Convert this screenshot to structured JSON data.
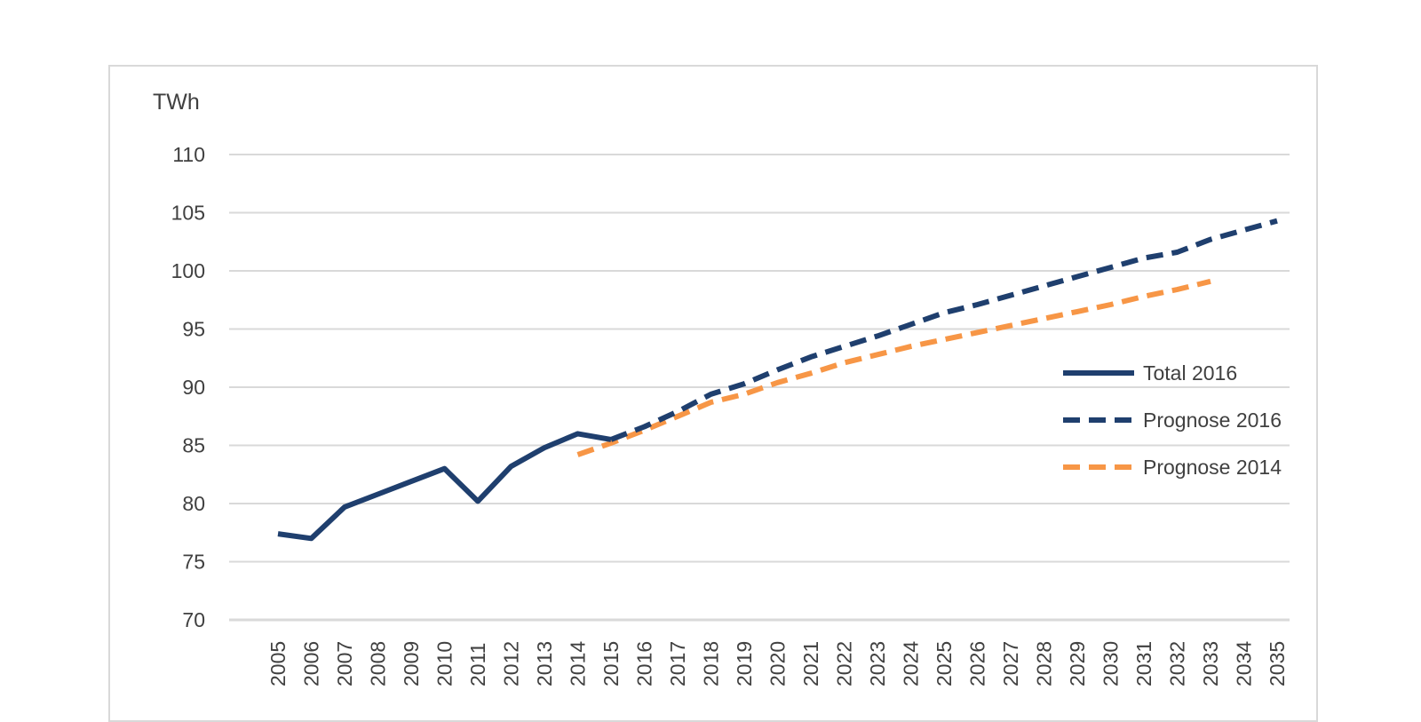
{
  "chart_data": {
    "type": "line",
    "ylabel": "TWh",
    "ylim": [
      70,
      110
    ],
    "y_ticks": [
      70,
      75,
      80,
      85,
      90,
      95,
      100,
      105,
      110
    ],
    "x": [
      2005,
      2006,
      2007,
      2008,
      2009,
      2010,
      2011,
      2012,
      2013,
      2014,
      2015,
      2016,
      2017,
      2018,
      2019,
      2020,
      2021,
      2022,
      2023,
      2024,
      2025,
      2026,
      2027,
      2028,
      2029,
      2030,
      2031,
      2032,
      2033,
      2034,
      2035
    ],
    "grid": true,
    "legend_position": "right",
    "series": [
      {
        "name": "Total 2016",
        "style": "solid",
        "color": "#1f3f6e",
        "points": [
          [
            2005,
            77.4
          ],
          [
            2006,
            77.0
          ],
          [
            2007,
            79.7
          ],
          [
            2008,
            80.8
          ],
          [
            2009,
            81.9
          ],
          [
            2010,
            83.0
          ],
          [
            2011,
            80.2
          ],
          [
            2012,
            83.2
          ],
          [
            2013,
            84.8
          ],
          [
            2014,
            86.0
          ],
          [
            2015,
            85.5
          ]
        ]
      },
      {
        "name": "Prognose 2016",
        "style": "dashed",
        "color": "#1f3f6e",
        "points": [
          [
            2015,
            85.5
          ],
          [
            2016,
            86.6
          ],
          [
            2017,
            87.9
          ],
          [
            2018,
            89.4
          ],
          [
            2019,
            90.3
          ],
          [
            2020,
            91.5
          ],
          [
            2021,
            92.6
          ],
          [
            2022,
            93.5
          ],
          [
            2023,
            94.4
          ],
          [
            2024,
            95.4
          ],
          [
            2025,
            96.4
          ],
          [
            2026,
            97.1
          ],
          [
            2027,
            97.9
          ],
          [
            2028,
            98.7
          ],
          [
            2029,
            99.5
          ],
          [
            2030,
            100.3
          ],
          [
            2031,
            101.1
          ],
          [
            2032,
            101.6
          ],
          [
            2033,
            102.7
          ],
          [
            2034,
            103.5
          ],
          [
            2035,
            104.3
          ]
        ]
      },
      {
        "name": "Prognose 2014",
        "style": "dashed",
        "color": "#f79646",
        "points": [
          [
            2014,
            84.2
          ],
          [
            2015,
            85.2
          ],
          [
            2016,
            86.3
          ],
          [
            2017,
            87.5
          ],
          [
            2018,
            88.7
          ],
          [
            2019,
            89.4
          ],
          [
            2020,
            90.4
          ],
          [
            2021,
            91.2
          ],
          [
            2022,
            92.1
          ],
          [
            2023,
            92.8
          ],
          [
            2024,
            93.5
          ],
          [
            2025,
            94.1
          ],
          [
            2026,
            94.7
          ],
          [
            2027,
            95.3
          ],
          [
            2028,
            95.9
          ],
          [
            2029,
            96.5
          ],
          [
            2030,
            97.1
          ],
          [
            2031,
            97.8
          ],
          [
            2032,
            98.4
          ],
          [
            2033,
            99.1
          ]
        ]
      }
    ]
  }
}
